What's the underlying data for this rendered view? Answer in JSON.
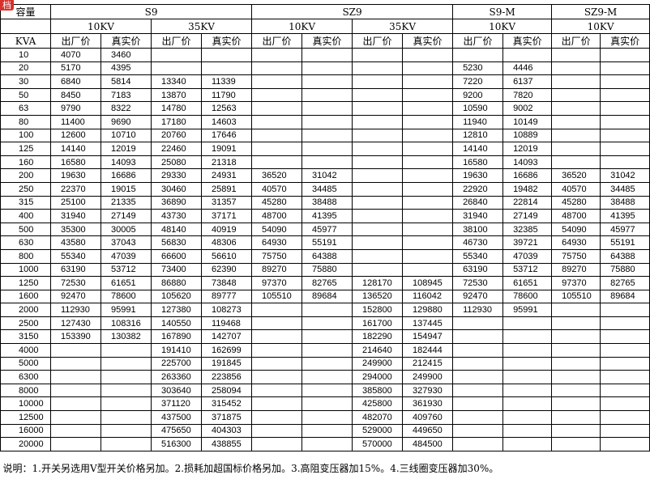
{
  "badge": "档",
  "header": {
    "corner_top": "容量",
    "corner_bottom": "KVA",
    "groups": [
      {
        "name": "S9",
        "subgroups": [
          {
            "voltage": "10KV",
            "columns": [
              "出厂价",
              "真实价"
            ]
          },
          {
            "voltage": "35KV",
            "columns": [
              "出厂价",
              "真实价"
            ]
          }
        ]
      },
      {
        "name": "SZ9",
        "subgroups": [
          {
            "voltage": "10KV",
            "columns": [
              "出厂价",
              "真实价"
            ]
          },
          {
            "voltage": "35KV",
            "columns": [
              "出厂价",
              "真实价"
            ]
          }
        ]
      },
      {
        "name": "S9-M",
        "subgroups": [
          {
            "voltage": "10KV",
            "columns": [
              "出厂价",
              "真实价"
            ]
          }
        ]
      },
      {
        "name": "SZ9-M",
        "subgroups": [
          {
            "voltage": "10KV",
            "columns": [
              "出厂价",
              "真实价"
            ]
          }
        ]
      }
    ]
  },
  "rows": [
    {
      "kva": 10,
      "prices": [
        4070,
        3460,
        null,
        null,
        null,
        null,
        null,
        null,
        null,
        null,
        null,
        null
      ]
    },
    {
      "kva": 20,
      "prices": [
        5170,
        4395,
        null,
        null,
        null,
        null,
        null,
        null,
        5230,
        4446,
        null,
        null
      ]
    },
    {
      "kva": 30,
      "prices": [
        6840,
        5814,
        13340,
        11339,
        null,
        null,
        null,
        null,
        7220,
        6137,
        null,
        null
      ]
    },
    {
      "kva": 50,
      "prices": [
        8450,
        7183,
        13870,
        11790,
        null,
        null,
        null,
        null,
        9200,
        7820,
        null,
        null
      ]
    },
    {
      "kva": 63,
      "prices": [
        9790,
        8322,
        14780,
        12563,
        null,
        null,
        null,
        null,
        10590,
        9002,
        null,
        null
      ]
    },
    {
      "kva": 80,
      "prices": [
        11400,
        9690,
        17180,
        14603,
        null,
        null,
        null,
        null,
        11940,
        10149,
        null,
        null
      ]
    },
    {
      "kva": 100,
      "prices": [
        12600,
        10710,
        20760,
        17646,
        null,
        null,
        null,
        null,
        12810,
        10889,
        null,
        null
      ]
    },
    {
      "kva": 125,
      "prices": [
        14140,
        12019,
        22460,
        19091,
        null,
        null,
        null,
        null,
        14140,
        12019,
        null,
        null
      ]
    },
    {
      "kva": 160,
      "prices": [
        16580,
        14093,
        25080,
        21318,
        null,
        null,
        null,
        null,
        16580,
        14093,
        null,
        null
      ]
    },
    {
      "kva": 200,
      "prices": [
        19630,
        16686,
        29330,
        24931,
        36520,
        31042,
        null,
        null,
        19630,
        16686,
        36520,
        31042
      ]
    },
    {
      "kva": 250,
      "prices": [
        22370,
        19015,
        30460,
        25891,
        40570,
        34485,
        null,
        null,
        22920,
        19482,
        40570,
        34485
      ]
    },
    {
      "kva": 315,
      "prices": [
        25100,
        21335,
        36890,
        31357,
        45280,
        38488,
        null,
        null,
        26840,
        22814,
        45280,
        38488
      ]
    },
    {
      "kva": 400,
      "prices": [
        31940,
        27149,
        43730,
        37171,
        48700,
        41395,
        null,
        null,
        31940,
        27149,
        48700,
        41395
      ]
    },
    {
      "kva": 500,
      "prices": [
        35300,
        30005,
        48140,
        40919,
        54090,
        45977,
        null,
        null,
        38100,
        32385,
        54090,
        45977
      ]
    },
    {
      "kva": 630,
      "prices": [
        43580,
        37043,
        56830,
        48306,
        64930,
        55191,
        null,
        null,
        46730,
        39721,
        64930,
        55191
      ]
    },
    {
      "kva": 800,
      "prices": [
        55340,
        47039,
        66600,
        56610,
        75750,
        64388,
        null,
        null,
        55340,
        47039,
        75750,
        64388
      ]
    },
    {
      "kva": 1000,
      "prices": [
        63190,
        53712,
        73400,
        62390,
        89270,
        75880,
        null,
        null,
        63190,
        53712,
        89270,
        75880
      ]
    },
    {
      "kva": 1250,
      "prices": [
        72530,
        61651,
        86880,
        73848,
        97370,
        82765,
        128170,
        108945,
        72530,
        61651,
        97370,
        82765
      ]
    },
    {
      "kva": 1600,
      "prices": [
        92470,
        78600,
        105620,
        89777,
        105510,
        89684,
        136520,
        116042,
        92470,
        78600,
        105510,
        89684
      ]
    },
    {
      "kva": 2000,
      "prices": [
        112930,
        95991,
        127380,
        108273,
        null,
        null,
        152800,
        129880,
        112930,
        95991,
        null,
        null
      ]
    },
    {
      "kva": 2500,
      "prices": [
        127430,
        108316,
        140550,
        119468,
        null,
        null,
        161700,
        137445,
        null,
        null,
        null,
        null
      ]
    },
    {
      "kva": 3150,
      "prices": [
        153390,
        130382,
        167890,
        142707,
        null,
        null,
        182290,
        154947,
        null,
        null,
        null,
        null
      ]
    },
    {
      "kva": 4000,
      "prices": [
        null,
        null,
        191410,
        162699,
        null,
        null,
        214640,
        182444,
        null,
        null,
        null,
        null
      ]
    },
    {
      "kva": 5000,
      "prices": [
        null,
        null,
        225700,
        191845,
        null,
        null,
        249900,
        212415,
        null,
        null,
        null,
        null
      ]
    },
    {
      "kva": 6300,
      "prices": [
        null,
        null,
        263360,
        223856,
        null,
        null,
        294000,
        249900,
        null,
        null,
        null,
        null
      ]
    },
    {
      "kva": 8000,
      "prices": [
        null,
        null,
        303640,
        258094,
        null,
        null,
        385800,
        327930,
        null,
        null,
        null,
        null
      ]
    },
    {
      "kva": 10000,
      "prices": [
        null,
        null,
        371120,
        315452,
        null,
        null,
        425800,
        361930,
        null,
        null,
        null,
        null
      ]
    },
    {
      "kva": 12500,
      "prices": [
        null,
        null,
        437500,
        371875,
        null,
        null,
        482070,
        409760,
        null,
        null,
        null,
        null
      ]
    },
    {
      "kva": 16000,
      "prices": [
        null,
        null,
        475650,
        404303,
        null,
        null,
        529000,
        449650,
        null,
        null,
        null,
        null
      ]
    },
    {
      "kva": 20000,
      "prices": [
        null,
        null,
        516300,
        438855,
        null,
        null,
        570000,
        484500,
        null,
        null,
        null,
        null
      ]
    }
  ],
  "note": "说明：1.开关另选用V型开关价格另加。2.损耗加超国标价格另加。3.高阻变压器加15%。4.三线圈变压器加30%。"
}
